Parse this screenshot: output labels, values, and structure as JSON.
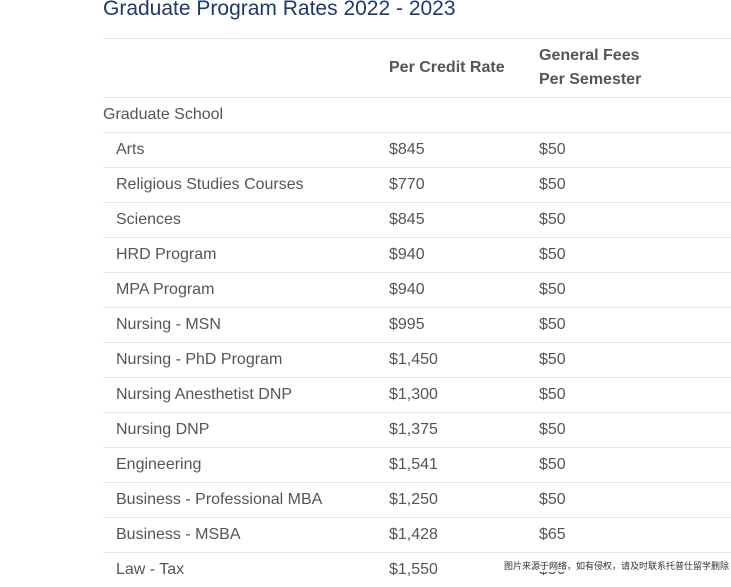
{
  "title": "Graduate Program Rates 2022 - 2023",
  "headers": {
    "program": "",
    "per_credit_rate": "Per Credit Rate",
    "general_fees_line1": "General Fees",
    "general_fees_line2": "Per Semester"
  },
  "section": "Graduate School",
  "rows": [
    {
      "program": "Arts",
      "rate": "$845",
      "fees": "$50"
    },
    {
      "program": "Religious Studies Courses",
      "rate": "$770",
      "fees": "$50"
    },
    {
      "program": "Sciences",
      "rate": "$845",
      "fees": "$50"
    },
    {
      "program": "HRD Program",
      "rate": "$940",
      "fees": "$50"
    },
    {
      "program": "MPA Program",
      "rate": "$940",
      "fees": "$50"
    },
    {
      "program": "Nursing - MSN",
      "rate": "$995",
      "fees": "$50"
    },
    {
      "program": "Nursing - PhD Program",
      "rate": "$1,450",
      "fees": "$50"
    },
    {
      "program": "Nursing Anesthetist DNP",
      "rate": "$1,300",
      "fees": "$50"
    },
    {
      "program": "Nursing DNP",
      "rate": "$1,375",
      "fees": "$50"
    },
    {
      "program": "Engineering",
      "rate": "$1,541",
      "fees": "$50"
    },
    {
      "program": "Business - Professional MBA",
      "rate": "$1,250",
      "fees": "$50"
    },
    {
      "program": "Business - MSBA",
      "rate": "$1,428",
      "fees": "$65"
    },
    {
      "program": "Law - Tax",
      "rate": "$1,550",
      "fees": "$50"
    }
  ],
  "watermark": "图片来源于网络，如有侵权，请及时联系托普仕留学删除"
}
